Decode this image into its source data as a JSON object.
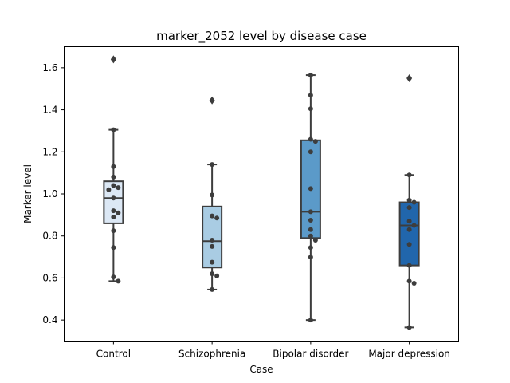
{
  "chart_data": {
    "type": "box",
    "title": "marker_2052 level by disease case",
    "xlabel": "Case",
    "ylabel": "Marker level",
    "ylim": [
      0.3,
      1.7
    ],
    "yticks": [
      0.4,
      0.6,
      0.8,
      1.0,
      1.2,
      1.4,
      1.6
    ],
    "ytick_labels": [
      "0.4",
      "0.6",
      "0.8",
      "1.0",
      "1.2",
      "1.4",
      "1.6"
    ],
    "grid": false,
    "categories": [
      "Control",
      "Schizophrenia",
      "Bipolar disorder",
      "Major depression"
    ],
    "boxes": [
      {
        "category": "Control",
        "color": "#dce8f5",
        "q1": 0.86,
        "median": 0.98,
        "q3": 1.06,
        "whisker_low": 0.585,
        "whisker_high": 1.305,
        "outliers": [
          1.64
        ]
      },
      {
        "category": "Schizophrenia",
        "color": "#a9cce3",
        "q1": 0.65,
        "median": 0.775,
        "q3": 0.94,
        "whisker_low": 0.545,
        "whisker_high": 1.14,
        "outliers": [
          1.445
        ]
      },
      {
        "category": "Bipolar disorder",
        "color": "#5b9ac9",
        "q1": 0.79,
        "median": 0.915,
        "q3": 1.255,
        "whisker_low": 0.4,
        "whisker_high": 1.565,
        "outliers": []
      },
      {
        "category": "Major depression",
        "color": "#2166ac",
        "q1": 0.66,
        "median": 0.85,
        "q3": 0.96,
        "whisker_low": 0.365,
        "whisker_high": 1.09,
        "outliers": [
          1.55
        ]
      }
    ],
    "points": [
      {
        "category": "Control",
        "values": [
          1.64,
          1.305,
          1.13,
          1.08,
          1.04,
          1.03,
          1.02,
          0.98,
          0.92,
          0.91,
          0.89,
          0.825,
          0.745,
          0.605,
          0.585
        ]
      },
      {
        "category": "Schizophrenia",
        "values": [
          1.445,
          1.14,
          0.995,
          0.895,
          0.885,
          0.78,
          0.75,
          0.675,
          0.62,
          0.61,
          0.545
        ]
      },
      {
        "category": "Bipolar disorder",
        "values": [
          1.565,
          1.47,
          1.405,
          1.26,
          1.25,
          1.2,
          1.025,
          0.915,
          0.875,
          0.83,
          0.8,
          0.78,
          0.745,
          0.7,
          0.4
        ]
      },
      {
        "category": "Major depression",
        "values": [
          1.55,
          1.09,
          0.97,
          0.96,
          0.935,
          0.87,
          0.85,
          0.83,
          0.76,
          0.66,
          0.585,
          0.575,
          0.365
        ]
      }
    ]
  }
}
